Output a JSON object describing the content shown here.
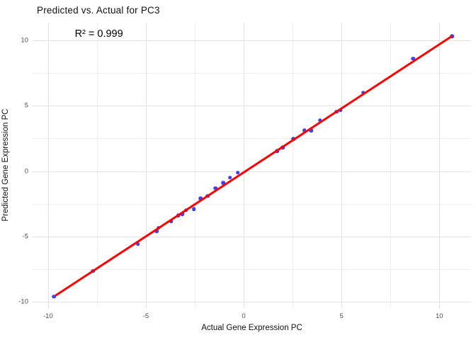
{
  "figure": {
    "title": "Predicted vs. Actual for PC3"
  },
  "chart_data": {
    "type": "scatter",
    "title": "Predicted vs. Actual for PC3",
    "xlabel": "Actual Gene Expression PC",
    "ylabel": "Predicted Gene Expression PC",
    "annotation": {
      "text": "R² = 0.999",
      "x": -7.4,
      "y": 10.5
    },
    "x_domain": [
      -10.79,
      11.62
    ],
    "y_domain": [
      -10.49,
      11.36
    ],
    "x_ticks": [
      -10,
      -5,
      0,
      5,
      10
    ],
    "y_ticks": [
      -10,
      -5,
      0,
      5,
      10
    ],
    "x_minor_ticks": [
      -7.5,
      -2.5,
      2.5,
      7.5
    ],
    "y_minor_ticks": [
      -7.5,
      -2.5,
      2.5,
      7.5
    ],
    "grid": true,
    "legend": false,
    "point_color": "#0000E6",
    "point_opacity": 0.75,
    "line_color": "#FF0000",
    "fit_line": {
      "x1": -9.64,
      "y1": -9.55,
      "x2": 10.65,
      "y2": 10.33
    },
    "points": [
      [
        -9.7,
        -9.6
      ],
      [
        -7.7,
        -7.65
      ],
      [
        -5.4,
        -5.6
      ],
      [
        -4.45,
        -4.6
      ],
      [
        -4.35,
        -4.35
      ],
      [
        -3.7,
        -3.85
      ],
      [
        -3.35,
        -3.4
      ],
      [
        -3.15,
        -3.3
      ],
      [
        -2.95,
        -3.0
      ],
      [
        -2.55,
        -2.9
      ],
      [
        -2.2,
        -2.1
      ],
      [
        -1.85,
        -1.9
      ],
      [
        -1.45,
        -1.3
      ],
      [
        -1.05,
        -0.9
      ],
      [
        -0.7,
        -0.5
      ],
      [
        -0.3,
        -0.12
      ],
      [
        1.7,
        1.55
      ],
      [
        2.0,
        1.8
      ],
      [
        2.55,
        2.45
      ],
      [
        3.1,
        3.1
      ],
      [
        3.45,
        3.1
      ],
      [
        3.9,
        3.9
      ],
      [
        4.75,
        4.55
      ],
      [
        4.95,
        4.65
      ],
      [
        6.1,
        6.0
      ],
      [
        8.65,
        8.6
      ],
      [
        10.65,
        10.33
      ]
    ]
  }
}
